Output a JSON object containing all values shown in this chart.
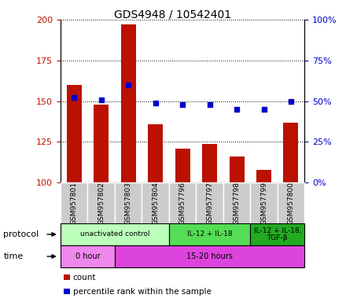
{
  "title": "GDS4948 / 10542401",
  "samples": [
    "GSM957801",
    "GSM957802",
    "GSM957803",
    "GSM957804",
    "GSM957796",
    "GSM957797",
    "GSM957798",
    "GSM957799",
    "GSM957800"
  ],
  "counts": [
    160,
    148,
    197,
    136,
    121,
    124,
    116,
    108,
    137
  ],
  "percentile_ranks": [
    52,
    51,
    60,
    49,
    48,
    48,
    45,
    45,
    50
  ],
  "ylim_left": [
    100,
    200
  ],
  "ylim_right": [
    0,
    100
  ],
  "yticks_left": [
    100,
    125,
    150,
    175,
    200
  ],
  "yticks_right": [
    0,
    25,
    50,
    75,
    100
  ],
  "bar_color": "#bb1100",
  "dot_color": "#0000cc",
  "protocol_groups": [
    {
      "label": "unactivated control",
      "start": 0,
      "end": 4,
      "color": "#bbffbb"
    },
    {
      "label": "IL-12 + IL-18",
      "start": 4,
      "end": 7,
      "color": "#55dd55"
    },
    {
      "label": "IL-12 + IL-18,\nTGF-β",
      "start": 7,
      "end": 9,
      "color": "#22aa22"
    }
  ],
  "time_groups": [
    {
      "label": "0 hour",
      "start": 0,
      "end": 2,
      "color": "#ee88ee"
    },
    {
      "label": "15-20 hours",
      "start": 2,
      "end": 9,
      "color": "#dd44dd"
    }
  ],
  "legend_count_label": "count",
  "legend_pct_label": "percentile rank within the sample",
  "xlabel_protocol": "protocol",
  "xlabel_time": "time"
}
